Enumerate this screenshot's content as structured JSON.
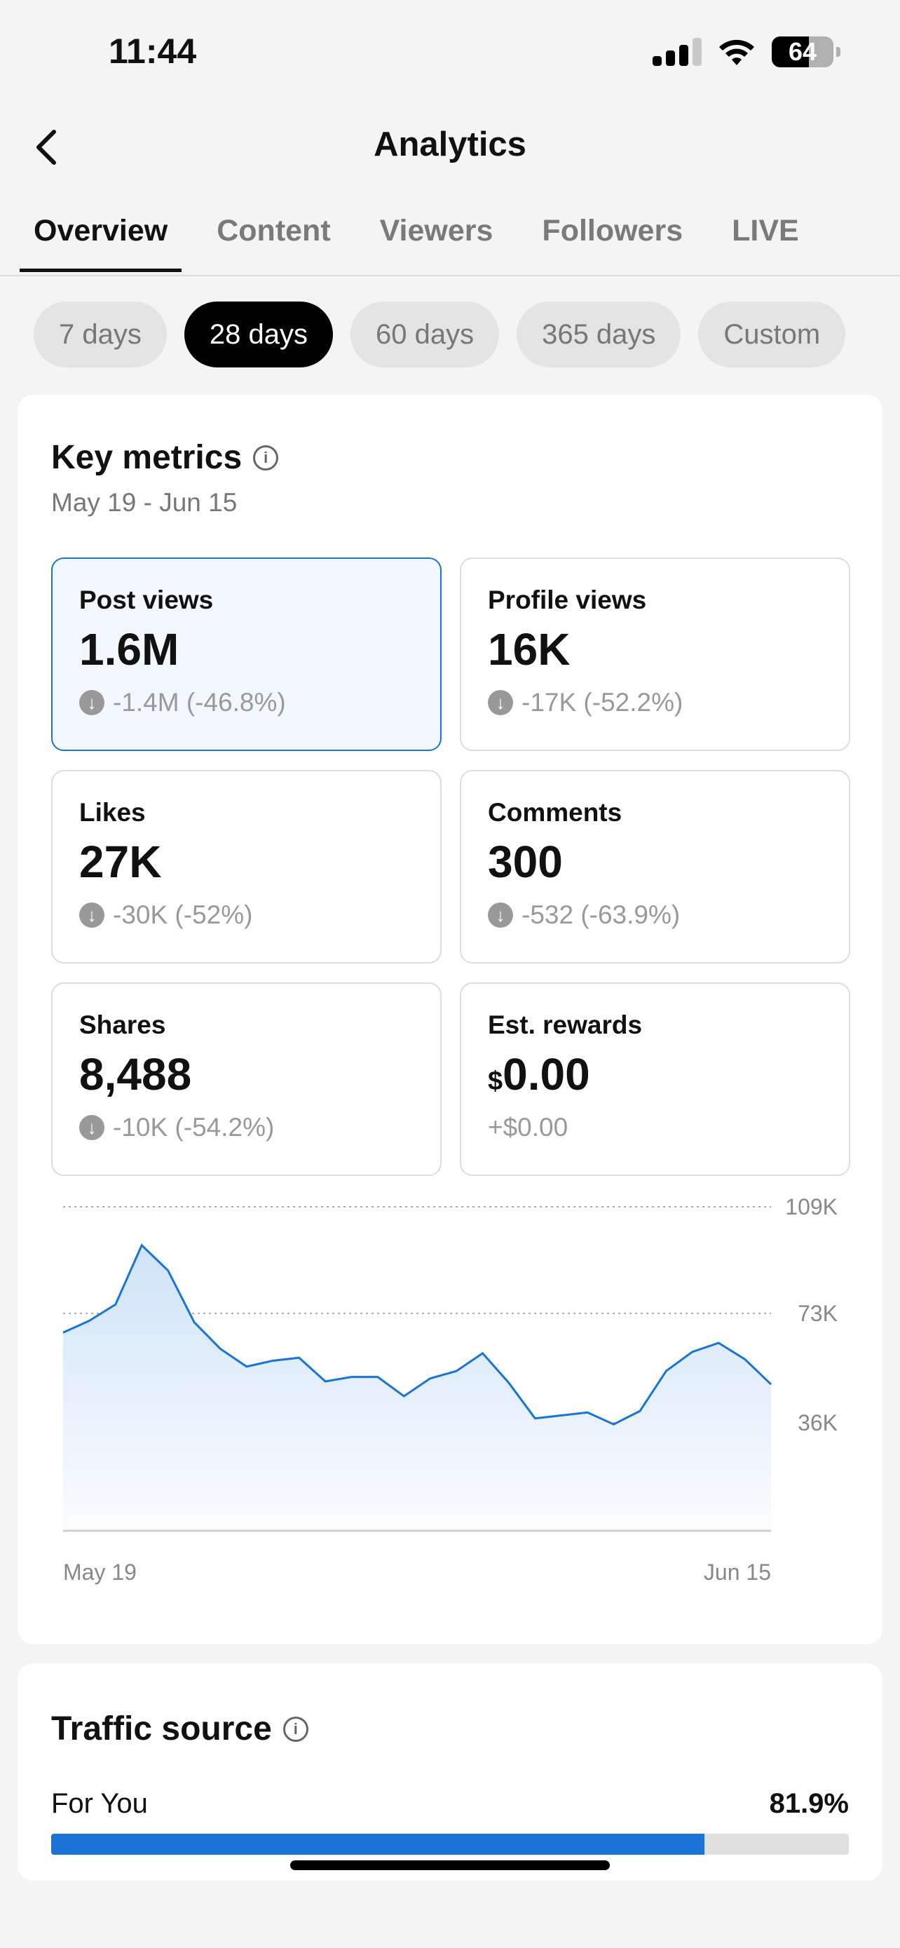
{
  "status": {
    "time": "11:44",
    "battery": "64"
  },
  "header": {
    "title": "Analytics"
  },
  "tabs": [
    "Overview",
    "Content",
    "Viewers",
    "Followers",
    "LIVE"
  ],
  "ranges": [
    "7 days",
    "28 days",
    "60 days",
    "365 days",
    "Custom"
  ],
  "key_metrics": {
    "title": "Key metrics",
    "range": "May 19 - Jun 15",
    "metrics": [
      {
        "label": "Post views",
        "value": "1.6M",
        "delta": "-1.4M (-46.8%)"
      },
      {
        "label": "Profile views",
        "value": "16K",
        "delta": "-17K (-52.2%)"
      },
      {
        "label": "Likes",
        "value": "27K",
        "delta": "-30K (-52%)"
      },
      {
        "label": "Comments",
        "value": "300",
        "delta": "-532 (-63.9%)"
      },
      {
        "label": "Shares",
        "value": "8,488",
        "delta": "-10K (-54.2%)"
      },
      {
        "label": "Est. rewards",
        "currency": "$",
        "value": "0.00",
        "delta": "+$0.00"
      }
    ]
  },
  "chart_data": {
    "type": "area",
    "series": [
      {
        "name": "Post views",
        "values": [
          66.5,
          70.5,
          76,
          96,
          87.5,
          70,
          61,
          55,
          57,
          58,
          50,
          51.5,
          51.5,
          45,
          51,
          53.5,
          59.5,
          49.5,
          37.5,
          38.5,
          39.5,
          35.5,
          40,
          53.5,
          60,
          63,
          57.5,
          49
        ]
      }
    ],
    "x_labels": [
      "May 19",
      "Jun 15"
    ],
    "y_ticks": [
      "109K",
      "73K",
      "36K"
    ],
    "y_tick_values": [
      109,
      73,
      36
    ],
    "ylim": [
      0,
      109
    ],
    "unit": "K",
    "color": "#1a73d6"
  },
  "traffic": {
    "title": "Traffic source",
    "items": [
      {
        "label": "For You",
        "value": "81.9%",
        "fraction": 0.819
      }
    ]
  }
}
